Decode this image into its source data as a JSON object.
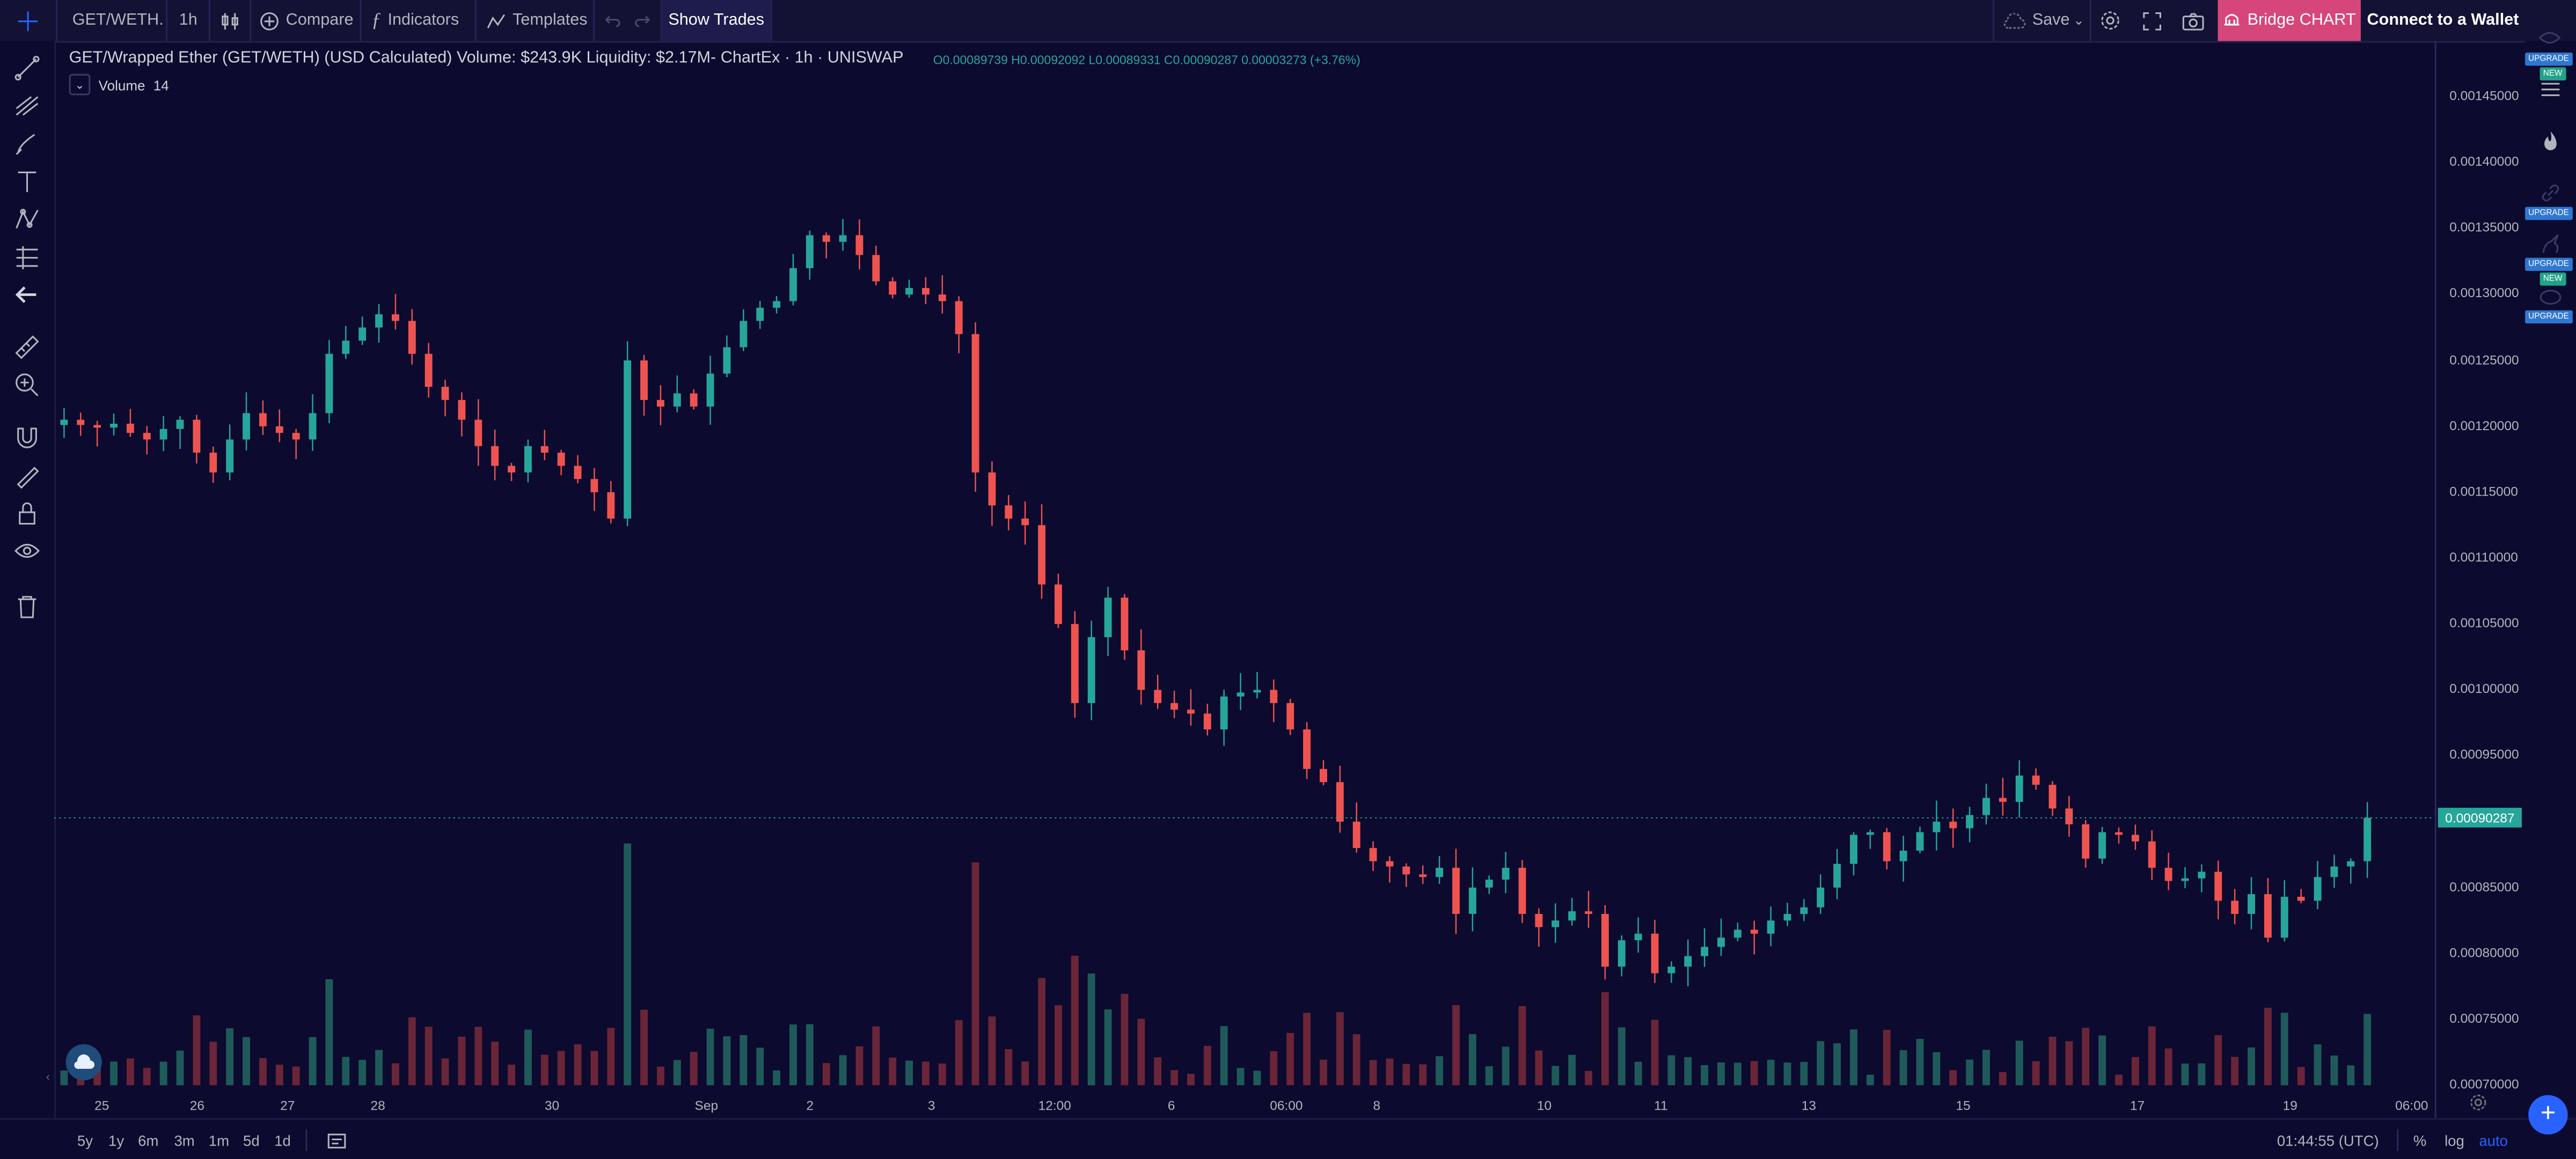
{
  "toolbar": {
    "symbol": "GET/WETH.",
    "interval": "1h",
    "compare": "Compare",
    "indicators": "Indicators",
    "templates": "Templates",
    "show_trades": "Show Trades",
    "save": "Save",
    "bridge": "Bridge CHART",
    "wallet": "Connect to a Wallet"
  },
  "legend": {
    "title": "GET/Wrapped Ether (GET/WETH) (USD Calculated) Volume: $243.9K Liquidity: $2.17M- ChartEx · 1h · UNISWAP",
    "ohlc": "O0.00089739 H0.00092092 L0.00089331 C0.00090287 0.00003273 (+3.76%)",
    "volume_label": "Volume",
    "volume_value": "14"
  },
  "right_badges": {
    "upgrade": "UPGRADE",
    "new": "NEW"
  },
  "price_axis": {
    "labels": [
      "0.00145000",
      "0.00140000",
      "0.00135000",
      "0.00130000",
      "0.00125000",
      "0.00120000",
      "0.00115000",
      "0.00110000",
      "0.00105000",
      "0.00100000",
      "0.00095000",
      "0.00090000",
      "0.00085000",
      "0.00080000",
      "0.00075000",
      "0.00070000"
    ],
    "current": "0.00090287"
  },
  "time_axis": {
    "labels": [
      "25",
      "26",
      "27",
      "28",
      "30",
      "Sep",
      "2",
      "3",
      "12:00",
      "6",
      "06:00",
      "8",
      "10",
      "11",
      "13",
      "15",
      "17",
      "19",
      "06:00"
    ]
  },
  "bottom": {
    "ranges": [
      "5y",
      "1y",
      "6m",
      "3m",
      "1m",
      "5d",
      "1d"
    ],
    "clock": "01:44:55 (UTC)",
    "percent": "%",
    "log": "log",
    "auto": "auto"
  },
  "colors": {
    "background": "#0c0a2e",
    "up": "#26a69a",
    "down": "#ef5350",
    "accent": "#d6467a",
    "blue": "#2962ff"
  },
  "chart_data": {
    "type": "candlestick",
    "ylim": [
      0.0007,
      0.00148
    ],
    "close": [
      0.001205,
      0.001201,
      0.001199,
      0.001202,
      0.001195,
      0.00119,
      0.001198,
      0.001205,
      0.00118,
      0.001165,
      0.00119,
      0.00121,
      0.0012,
      0.001195,
      0.00119,
      0.00121,
      0.001255,
      0.001265,
      0.001275,
      0.001285,
      0.00128,
      0.001255,
      0.00123,
      0.00122,
      0.001205,
      0.001185,
      0.00117,
      0.001165,
      0.001185,
      0.00118,
      0.00117,
      0.00116,
      0.00115,
      0.00113,
      0.00125,
      0.00122,
      0.001215,
      0.001225,
      0.001215,
      0.00124,
      0.00126,
      0.00128,
      0.00129,
      0.001295,
      0.00132,
      0.001345,
      0.00134,
      0.001345,
      0.00133,
      0.00131,
      0.0013,
      0.001305,
      0.0013,
      0.001295,
      0.00127,
      0.001165,
      0.00114,
      0.00113,
      0.001125,
      0.00108,
      0.00105,
      0.00099,
      0.00104,
      0.00107,
      0.00103,
      0.001,
      0.00099,
      0.000985,
      0.000982,
      0.00097,
      0.000995,
      0.000998,
      0.001,
      0.00099,
      0.00097,
      0.00094,
      0.00093,
      0.0009,
      0.00088,
      0.00087,
      0.000866,
      0.00086,
      0.000858,
      0.000865,
      0.00083,
      0.00085,
      0.000856,
      0.000865,
      0.00083,
      0.00082,
      0.000825,
      0.000832,
      0.00083,
      0.00079,
      0.00081,
      0.000815,
      0.000785,
      0.00079,
      0.000798,
      0.000805,
      0.000812,
      0.000818,
      0.000815,
      0.000825,
      0.00083,
      0.000835,
      0.00085,
      0.000868,
      0.00089,
      0.000892,
      0.00087,
      0.000878,
      0.000892,
      0.0009,
      0.000895,
      0.000905,
      0.000918,
      0.000915,
      0.000935,
      0.000928,
      0.00091,
      0.000898,
      0.000872,
      0.000892,
      0.00089,
      0.000885,
      0.000865,
      0.000855,
      0.000857,
      0.000862,
      0.00084,
      0.00083,
      0.000845,
      0.000812,
      0.000843,
      0.00084,
      0.000858,
      0.000866,
      0.00087,
      0.000903
    ]
  }
}
